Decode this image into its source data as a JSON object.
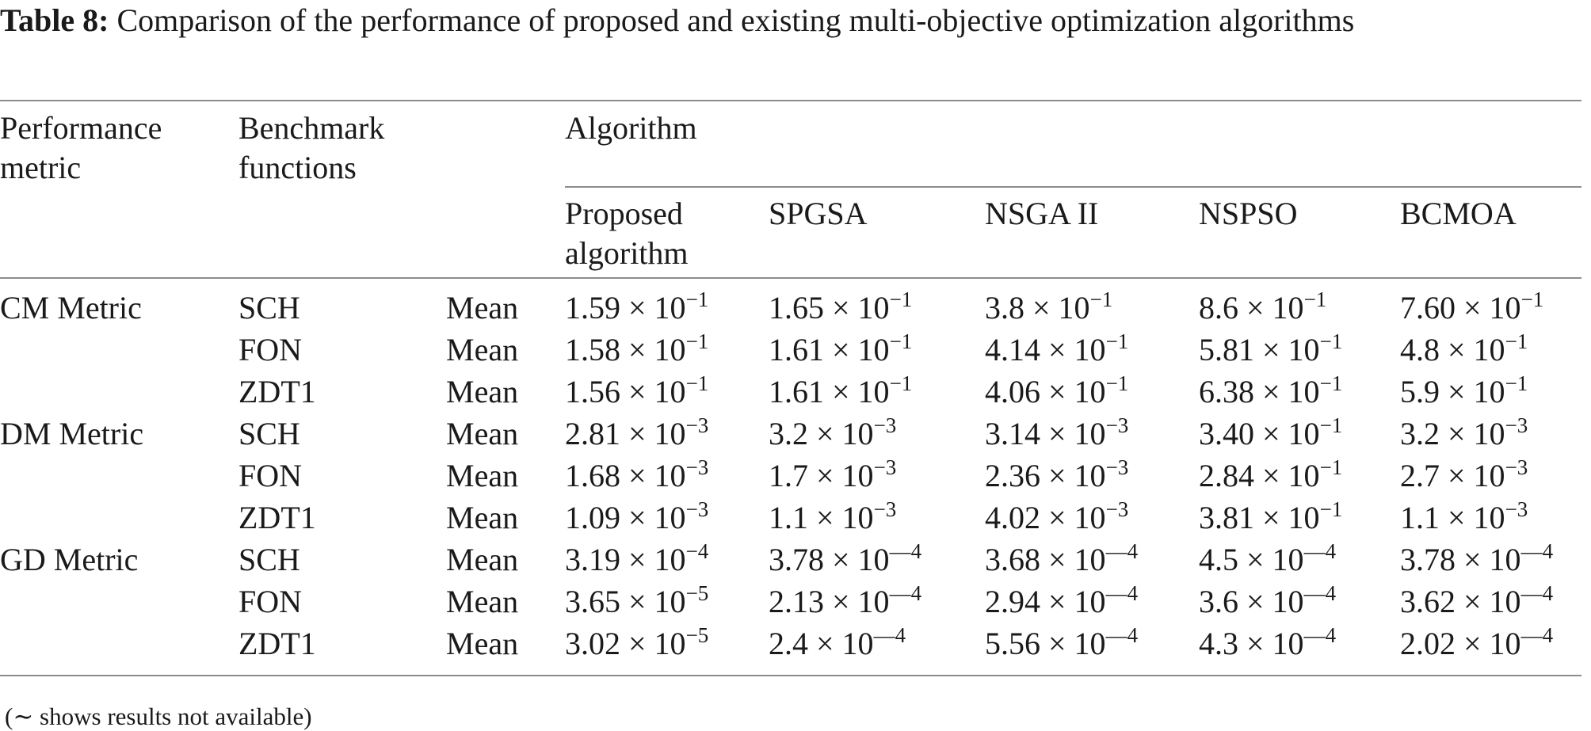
{
  "caption": {
    "label": "Table 8:",
    "text": "Comparison of the performance of proposed and existing multi-objective optimization algorithms"
  },
  "headers": {
    "metric_line1": "Performance",
    "metric_line2": "metric",
    "bench_line1": "Benchmark",
    "bench_line2": "functions",
    "group": "Algorithm",
    "algorithms": [
      {
        "line1": "Proposed",
        "line2": "algorithm"
      },
      {
        "line1": "SPGSA",
        "line2": ""
      },
      {
        "line1": "NSGA II",
        "line2": ""
      },
      {
        "line1": "NSPSO",
        "line2": ""
      },
      {
        "line1": "BCMOA",
        "line2": ""
      }
    ]
  },
  "rows": [
    {
      "metric": "CM Metric",
      "bench": "SCH",
      "stat": "Mean",
      "values": [
        {
          "m": "1.59 × 10",
          "e": "−1"
        },
        {
          "m": "1.65 × 10",
          "e": "−1"
        },
        {
          "m": "3.8 × 10",
          "e": "−1"
        },
        {
          "m": "8.6 × 10",
          "e": "−1"
        },
        {
          "m": "7.60 × 10",
          "e": "−1"
        }
      ]
    },
    {
      "metric": "",
      "bench": "FON",
      "stat": "Mean",
      "values": [
        {
          "m": "1.58 × 10",
          "e": "−1"
        },
        {
          "m": "1.61 × 10",
          "e": "−1"
        },
        {
          "m": "4.14 × 10",
          "e": "−1"
        },
        {
          "m": "5.81 × 10",
          "e": "−1"
        },
        {
          "m": "4.8 × 10",
          "e": "−1"
        }
      ]
    },
    {
      "metric": "",
      "bench": "ZDT1",
      "stat": "Mean",
      "values": [
        {
          "m": "1.56 × 10",
          "e": "−1"
        },
        {
          "m": "1.61 × 10",
          "e": "−1"
        },
        {
          "m": "4.06 × 10",
          "e": "−1"
        },
        {
          "m": "6.38 × 10",
          "e": "−1"
        },
        {
          "m": "5.9 × 10",
          "e": "−1"
        }
      ]
    },
    {
      "metric": "DM Metric",
      "bench": "SCH",
      "stat": "Mean",
      "values": [
        {
          "m": "2.81 × 10",
          "e": "−3"
        },
        {
          "m": "3.2 × 10",
          "e": "−3"
        },
        {
          "m": "3.14 × 10",
          "e": "−3"
        },
        {
          "m": "3.40 × 10",
          "e": "−1"
        },
        {
          "m": "3.2 × 10",
          "e": "−3"
        }
      ]
    },
    {
      "metric": "",
      "bench": "FON",
      "stat": "Mean",
      "values": [
        {
          "m": "1.68 × 10",
          "e": "−3"
        },
        {
          "m": "1.7 × 10",
          "e": "−3"
        },
        {
          "m": "2.36 × 10",
          "e": "−3"
        },
        {
          "m": "2.84 × 10",
          "e": "−1"
        },
        {
          "m": "2.7 × 10",
          "e": "−3"
        }
      ]
    },
    {
      "metric": "",
      "bench": "ZDT1",
      "stat": "Mean",
      "values": [
        {
          "m": "1.09 × 10",
          "e": "−3"
        },
        {
          "m": "1.1 × 10",
          "e": "−3"
        },
        {
          "m": "4.02 × 10",
          "e": "−3"
        },
        {
          "m": "3.81 × 10",
          "e": "−1"
        },
        {
          "m": "1.1 × 10",
          "e": "−3"
        }
      ]
    },
    {
      "metric": "GD Metric",
      "bench": "SCH",
      "stat": "Mean",
      "values": [
        {
          "m": "3.19 × 10",
          "e": "−4"
        },
        {
          "m": "3.78 × 10",
          "e": "—4"
        },
        {
          "m": "3.68 × 10",
          "e": "—4"
        },
        {
          "m": "4.5 × 10",
          "e": "—4"
        },
        {
          "m": "3.78 × 10",
          "e": "—4"
        }
      ]
    },
    {
      "metric": "",
      "bench": "FON",
      "stat": "Mean",
      "values": [
        {
          "m": "3.65 × 10",
          "e": "−5"
        },
        {
          "m": "2.13 × 10",
          "e": "—4"
        },
        {
          "m": "2.94 × 10",
          "e": "—4"
        },
        {
          "m": "3.6 × 10",
          "e": "—4"
        },
        {
          "m": "3.62 × 10",
          "e": "—4"
        }
      ]
    },
    {
      "metric": "",
      "bench": "ZDT1",
      "stat": "Mean",
      "values": [
        {
          "m": "3.02 × 10",
          "e": "−5"
        },
        {
          "m": "2.4 × 10",
          "e": "—4"
        },
        {
          "m": "5.56 × 10",
          "e": "—4"
        },
        {
          "m": "4.3 × 10",
          "e": "—4"
        },
        {
          "m": "2.02 × 10",
          "e": "—4"
        }
      ]
    }
  ],
  "footnote": "(∼ shows results not available)"
}
